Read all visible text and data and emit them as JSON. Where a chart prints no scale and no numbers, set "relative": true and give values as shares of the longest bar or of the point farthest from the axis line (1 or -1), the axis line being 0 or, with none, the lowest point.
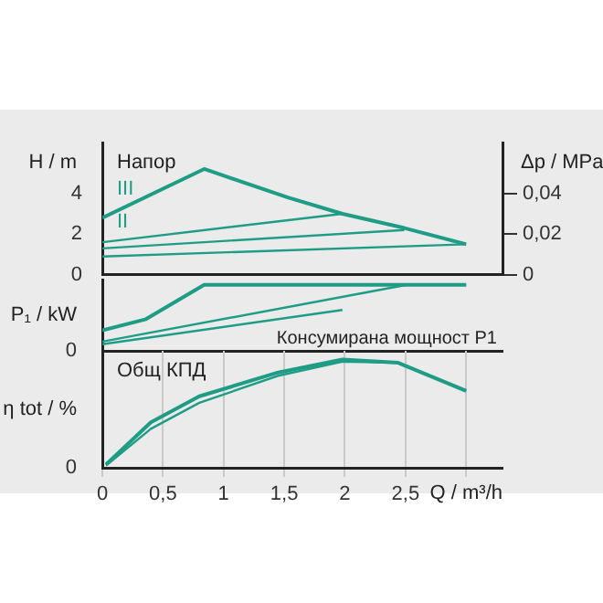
{
  "chart_data": [
    {
      "type": "line",
      "title": "Напор",
      "ylabel": "H / m",
      "y2label": "Δp / MPa",
      "xlim": [
        0,
        3.3
      ],
      "ylim": [
        0,
        6.5
      ],
      "yticks": [
        0,
        2,
        4
      ],
      "y2lim": [
        0,
        0.065
      ],
      "y2ticks": [
        {
          "value": 0,
          "label": "0"
        },
        {
          "value": 0.02,
          "label": "0,02"
        },
        {
          "value": 0.04,
          "label": "0,04"
        }
      ],
      "grid": "x",
      "tick_labels": "y",
      "marker": "none",
      "line_style": "solid",
      "annotations": [
        "III",
        "II"
      ],
      "series": [
        {
          "color": "#1f9c86",
          "x": [
            0,
            0.84,
            1.53,
            1.98,
            2.49,
            3.0
          ],
          "values": [
            2.8,
            5.2,
            3.8,
            3.0,
            2.3,
            1.5
          ]
        },
        {
          "color": "#1f9c86",
          "x": [
            0,
            1.98
          ],
          "values": [
            1.6,
            3.0
          ]
        },
        {
          "color": "#1f9c86",
          "x": [
            0,
            2.49
          ],
          "values": [
            1.3,
            2.2
          ]
        },
        {
          "color": "#1f9c86",
          "x": [
            0,
            3.0
          ],
          "values": [
            0.9,
            1.5
          ]
        }
      ]
    },
    {
      "type": "line",
      "title": "Консумирана мощност P1",
      "ylabel": "P₁ / kW",
      "relative": true,
      "xlim": [
        0,
        3.3
      ],
      "annotations": [
        "0"
      ],
      "grid": "x",
      "tick_labels": "y",
      "marker": "none",
      "line_style": "solid",
      "series": [
        {
          "color": "#1f9c86",
          "x": [
            0,
            0.36,
            0.84,
            3.0
          ],
          "values": [
            0.31,
            0.48,
            1.0,
            1.0
          ]
        },
        {
          "color": "#1f9c86",
          "x": [
            0,
            2.51,
            3.0
          ],
          "values": [
            0.14,
            1.0,
            1.0
          ]
        },
        {
          "color": "#1f9c86",
          "x": [
            0,
            1.98
          ],
          "values": [
            0.1,
            0.62
          ]
        }
      ]
    },
    {
      "type": "line",
      "title": "Общ КПД",
      "ylabel": "η tot / %",
      "xlabel": "Q / m³/h",
      "relative": true,
      "xlim": [
        0,
        3.3
      ],
      "xticks": [
        0,
        {
          "value": 0.5,
          "label": "0,5"
        },
        1,
        {
          "value": 1.5,
          "label": "1,5"
        },
        2,
        {
          "value": 2.5,
          "label": "2,5"
        },
        {
          "value": 3,
          "label": null
        }
      ],
      "annotations": [
        "0"
      ],
      "grid": "x",
      "marker": "none",
      "line_style": "solid",
      "series": [
        {
          "color": "#1f9c86",
          "x": [
            0.03,
            0.4,
            0.8,
            1.45,
            1.98,
            2.44,
            3.0
          ],
          "values": [
            0.03,
            0.42,
            0.66,
            0.88,
            1.0,
            0.97,
            0.71
          ]
        },
        {
          "color": "#1f9c86",
          "x": [
            0.03,
            0.4,
            0.8,
            1.45,
            1.98,
            2.44,
            3.0
          ],
          "values": [
            0.02,
            0.36,
            0.6,
            0.85,
            0.98,
            0.97,
            0.71
          ]
        }
      ]
    }
  ]
}
